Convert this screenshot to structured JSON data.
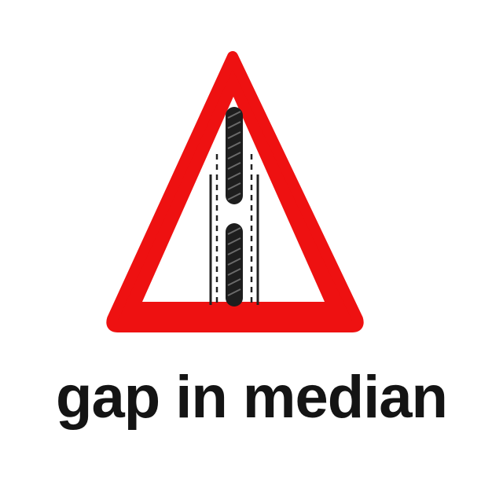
{
  "sign": {
    "icon": "gap-in-median-warning-icon",
    "border_color": "#ee1111",
    "fill_color": "#ffffff",
    "symbol_color": "#1e1e1e"
  },
  "caption": {
    "text": "gap in median"
  }
}
